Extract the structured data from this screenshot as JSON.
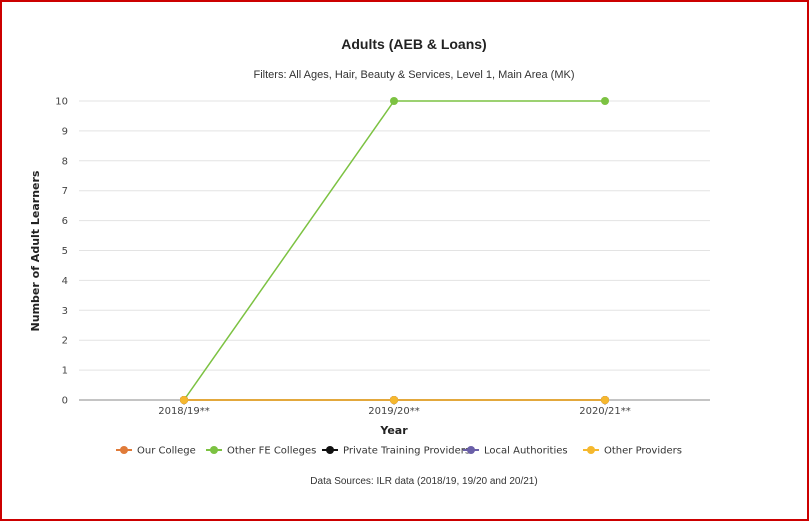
{
  "chart_data": {
    "type": "line",
    "title": "Adults (AEB & Loans)",
    "subtitle": "Filters: All Ages, Hair, Beauty & Services, Level 1, Main Area (MK)",
    "xlabel": "Year",
    "ylabel": "Number of Adult Learners",
    "categories": [
      "2018/19**",
      "2019/20**",
      "2020/21**"
    ],
    "ylim": [
      0,
      10
    ],
    "yticks": [
      0,
      1,
      2,
      3,
      4,
      5,
      6,
      7,
      8,
      9,
      10
    ],
    "grid": true,
    "legend_placement": "bottom",
    "series": [
      {
        "name": "Our College",
        "color": "#e07b39",
        "values": [
          0,
          0,
          0
        ]
      },
      {
        "name": "Other FE Colleges",
        "color": "#7cc242",
        "values": [
          0,
          10,
          10
        ]
      },
      {
        "name": "Private Training Providers",
        "color": "#111111",
        "values": [
          0,
          0,
          0
        ]
      },
      {
        "name": "Local Authorities",
        "color": "#6a5fa8",
        "values": [
          0,
          0,
          0
        ]
      },
      {
        "name": "Other Providers",
        "color": "#f5b82e",
        "values": [
          0,
          0,
          0
        ]
      }
    ],
    "source_note": "Data Sources: ILR data (2018/19, 19/20 and 20/21)"
  }
}
